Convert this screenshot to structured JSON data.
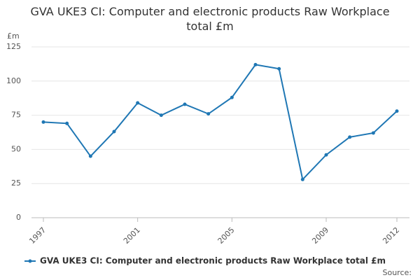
{
  "chart_data": {
    "type": "line",
    "title": "GVA UKE3 CI: Computer and electronic products Raw Workplace total £m",
    "y_unit": "£m",
    "x": [
      1997,
      1998,
      1999,
      2000,
      2001,
      2002,
      2003,
      2004,
      2005,
      2006,
      2007,
      2008,
      2009,
      2010,
      2011,
      2012
    ],
    "series": [
      {
        "name": "GVA UKE3 CI: Computer and electronic products Raw Workplace total £m",
        "color": "#1f77b4",
        "values": [
          70,
          69,
          45,
          63,
          84,
          75,
          83,
          76,
          88,
          112,
          109,
          28,
          46,
          59,
          62,
          78
        ]
      }
    ],
    "xlim": [
      1997,
      2012
    ],
    "xticks": [
      1997,
      2001,
      2005,
      2009,
      2012
    ],
    "ylim": [
      0,
      125
    ],
    "yticks": [
      0,
      25,
      50,
      75,
      100,
      125
    ],
    "grid": true,
    "legend": "bottom",
    "source_label": "Source:"
  }
}
